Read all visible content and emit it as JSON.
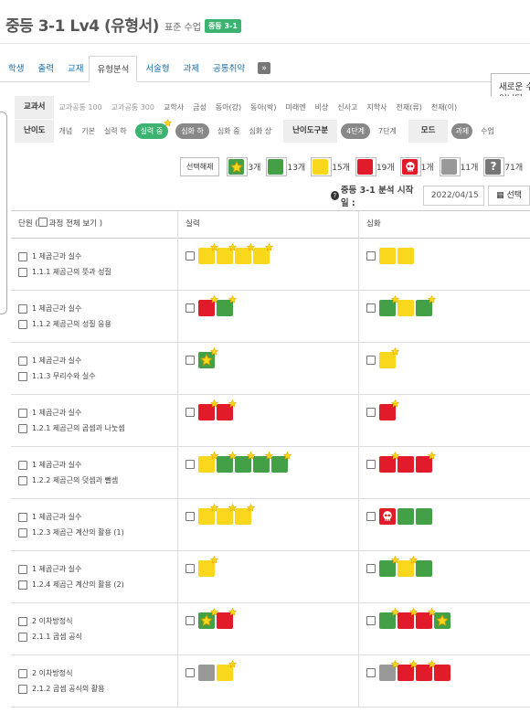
{
  "header": {
    "title": "중등 3-1 Lv4 (유형서)",
    "subtitle": "표준 수업",
    "badge": "중등 3-1"
  },
  "tabs": [
    {
      "label": "학생",
      "active": false
    },
    {
      "label": "출력",
      "active": false
    },
    {
      "label": "교재",
      "active": false
    },
    {
      "label": "유형분석",
      "active": true
    },
    {
      "label": "서술형",
      "active": false
    },
    {
      "label": "과제",
      "active": false
    },
    {
      "label": "공통취약",
      "active": false
    }
  ],
  "tab_more": "»",
  "popup": {
    "line1": "새로운 수",
    "line2": "입니다."
  },
  "filters": {
    "textbook_label": "교과서",
    "textbook_options": [
      "교과공통 100",
      "교과공통 300",
      "교학사",
      "금성",
      "동아(강)",
      "동아(박)",
      "미래엔",
      "비상",
      "신사고",
      "지학사",
      "천재(류)",
      "천재(이)"
    ],
    "difficulty_label": "난이도",
    "difficulty_options": [
      {
        "label": "개념",
        "style": "text"
      },
      {
        "label": "기본",
        "style": "text"
      },
      {
        "label": "실력 하",
        "style": "text"
      },
      {
        "label": "실력 중",
        "style": "green"
      },
      {
        "label": "심화 하",
        "style": "gray"
      },
      {
        "label": "심화 중",
        "style": "text"
      },
      {
        "label": "심화 상",
        "style": "text"
      }
    ],
    "level_split_label": "난이도구분",
    "level_split_options": [
      {
        "label": "4단계",
        "style": "gray"
      },
      {
        "label": "7단계",
        "style": "text"
      }
    ],
    "mode_label": "모드",
    "mode_options": [
      {
        "label": "과제",
        "style": "gray"
      },
      {
        "label": "수업",
        "style": "text"
      }
    ]
  },
  "summary": {
    "reset_label": "선택해제",
    "legend": [
      {
        "type": "star",
        "count": "3개"
      },
      {
        "type": "green",
        "count": "13개"
      },
      {
        "type": "yellow",
        "count": "15개"
      },
      {
        "type": "red",
        "count": "19개"
      },
      {
        "type": "skull",
        "count": "1개"
      },
      {
        "type": "gray",
        "count": "11개"
      },
      {
        "type": "question",
        "count": "71개"
      }
    ]
  },
  "analysis_start": {
    "label": "중등 3-1 분석 시작일 :",
    "date": "2022/04/15",
    "select_label": "선택"
  },
  "table": {
    "col_unit": "단원 (",
    "col_unit_check": "과정 전체 보기 )",
    "col_skill": "실력",
    "col_advanced": "심화",
    "rows": [
      {
        "unit": "1 제곱근과 실수",
        "sub": "1.1.1 제곱근의 뜻과 성질",
        "skill": [
          "y*",
          "y*",
          "y*",
          "y*"
        ],
        "advanced": [
          "y",
          "y"
        ]
      },
      {
        "unit": "1 제곱근과 실수",
        "sub": "1.1.2 제곱근의 성질 응용",
        "skill": [
          "r*",
          "g*"
        ],
        "advanced": [
          "g*",
          "y",
          "g*"
        ]
      },
      {
        "unit": "1 제곱근과 실수",
        "sub": "1.1.3 무리수와 실수",
        "skill": [
          "gs*"
        ],
        "advanced": [
          "y*"
        ]
      },
      {
        "unit": "1 제곱근과 실수",
        "sub": "1.2.1 제곱근의 곱셈과 나눗셈",
        "skill": [
          "r*",
          "r*"
        ],
        "advanced": [
          "r*"
        ]
      },
      {
        "unit": "1 제곱근과 실수",
        "sub": "1.2.2 제곱근의 덧셈과 뺄셈",
        "skill": [
          "y*",
          "g*",
          "g*",
          "g*",
          "g*"
        ],
        "advanced": [
          "r*",
          "r",
          "r*"
        ]
      },
      {
        "unit": "1 제곱근과 실수",
        "sub": "1.2.3 제곱근 계산의 활용 (1)",
        "skill": [
          "y*",
          "y*",
          "y*"
        ],
        "advanced": [
          "sk",
          "g",
          "g"
        ]
      },
      {
        "unit": "1 제곱근과 실수",
        "sub": "1.2.4 제곱근 계산의 활용 (2)",
        "skill": [
          "y*"
        ],
        "advanced": [
          "g*",
          "y*",
          "g"
        ]
      },
      {
        "unit": "2 이차방정식",
        "sub": "2.1.1 곱셈 공식",
        "skill": [
          "gs*",
          "r*"
        ],
        "advanced": [
          "g*",
          "r*",
          "r*",
          "gs"
        ]
      },
      {
        "unit": "2 이차방정식",
        "sub": "2.1.2 곱셈 공식의 활용",
        "skill": [
          "gr",
          "y*"
        ],
        "advanced": [
          "gr*",
          "r*",
          "r*",
          "r"
        ]
      }
    ]
  },
  "colors": {
    "green": "#43a047",
    "yellow": "#f9d71c",
    "red": "#e21b2b",
    "gray": "#999999",
    "accent_badge": "#3cb371",
    "tab_link": "#1a6fa8"
  }
}
